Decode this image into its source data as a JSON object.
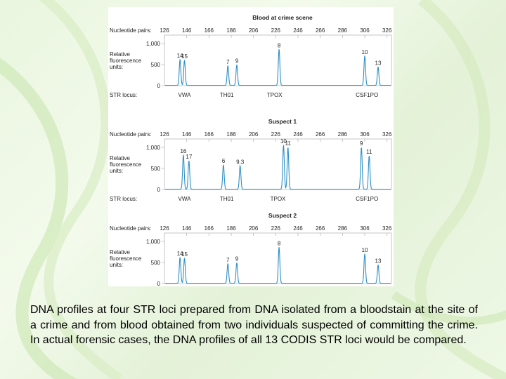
{
  "caption": "DNA profiles at four STR loci prepared from DNA isolated from a bloodstain at the site of a crime and from blood obtained from two individuals suspected of committing the crime. In actual forensic cases, the DNA profiles of all 13 CODIS STR loci would be compared.",
  "colors": {
    "trace": "#2f8fc4",
    "frame": "#b9b9b9",
    "text": "#222222"
  },
  "chart_data": [
    {
      "type": "line",
      "title": "Blood at crime scene",
      "x_axis_label": "Nucleotide pairs:",
      "x_ticks": [
        126,
        146,
        166,
        186,
        206,
        226,
        246,
        266,
        286,
        306,
        326
      ],
      "y_axis_label": [
        "Relative",
        "fluorescence",
        "units:"
      ],
      "y_ticks": [
        "1,000",
        "500",
        "0"
      ],
      "y_tick_values": [
        1000,
        500,
        0
      ],
      "ylim": [
        0,
        1100
      ],
      "xlim": [
        126,
        330
      ],
      "locus_label": "STR locus:",
      "loci": [
        {
          "name": "VWA",
          "x": 144
        },
        {
          "name": "TH01",
          "x": 182
        },
        {
          "name": "TPOX",
          "x": 225
        },
        {
          "name": "CSF1PO",
          "x": 308
        }
      ],
      "peaks": [
        {
          "label": "14",
          "x": 140,
          "y": 620
        },
        {
          "label": "15",
          "x": 144,
          "y": 600
        },
        {
          "label": "7",
          "x": 183,
          "y": 470
        },
        {
          "label": "9",
          "x": 191,
          "y": 490
        },
        {
          "label": "8",
          "x": 229,
          "y": 860
        },
        {
          "label": "10",
          "x": 306,
          "y": 700
        },
        {
          "label": "13",
          "x": 318,
          "y": 440
        }
      ]
    },
    {
      "type": "line",
      "title": "Suspect 1",
      "x_axis_label": "Nucleotide pairs:",
      "x_ticks": [
        126,
        146,
        166,
        186,
        206,
        226,
        246,
        266,
        286,
        306,
        326
      ],
      "y_axis_label": [
        "Relative",
        "fluorescence",
        "units:"
      ],
      "y_ticks": [
        "1,000",
        "500",
        "0"
      ],
      "y_tick_values": [
        1000,
        500,
        0
      ],
      "ylim": [
        0,
        1100
      ],
      "xlim": [
        126,
        330
      ],
      "locus_label": "STR locus:",
      "loci": [
        {
          "name": "VWA",
          "x": 144
        },
        {
          "name": "TH01",
          "x": 182
        },
        {
          "name": "TPOX",
          "x": 228
        },
        {
          "name": "CSF1PO",
          "x": 308
        }
      ],
      "peaks": [
        {
          "label": "16",
          "x": 143,
          "y": 820
        },
        {
          "label": "17",
          "x": 148,
          "y": 680
        },
        {
          "label": "6",
          "x": 179,
          "y": 580
        },
        {
          "label": "9.3",
          "x": 194,
          "y": 560
        },
        {
          "label": "10",
          "x": 233,
          "y": 1050
        },
        {
          "label": "11",
          "x": 237,
          "y": 1000
        },
        {
          "label": "9",
          "x": 303,
          "y": 1000
        },
        {
          "label": "11",
          "x": 310,
          "y": 800
        }
      ]
    },
    {
      "type": "line",
      "title": "Suspect 2",
      "x_axis_label": "Nucleotide pairs:",
      "x_ticks": [
        126,
        146,
        166,
        186,
        206,
        226,
        246,
        266,
        286,
        306,
        326
      ],
      "y_axis_label": [
        "Relative",
        "fluorescence",
        "units:"
      ],
      "y_ticks": [
        "1,000",
        "500",
        "0"
      ],
      "y_tick_values": [
        1000,
        500,
        0
      ],
      "ylim": [
        0,
        1100
      ],
      "xlim": [
        126,
        330
      ],
      "locus_label": "STR locus:",
      "loci": [
        {
          "name": "VWA",
          "x": 144
        },
        {
          "name": "TH01",
          "x": 182
        },
        {
          "name": "TPOX",
          "x": 225
        },
        {
          "name": "CSF1PO",
          "x": 308
        }
      ],
      "peaks": [
        {
          "label": "14",
          "x": 140,
          "y": 620
        },
        {
          "label": "15",
          "x": 144,
          "y": 600
        },
        {
          "label": "7",
          "x": 183,
          "y": 470
        },
        {
          "label": "9",
          "x": 191,
          "y": 490
        },
        {
          "label": "8",
          "x": 229,
          "y": 860
        },
        {
          "label": "10",
          "x": 306,
          "y": 700
        },
        {
          "label": "13",
          "x": 318,
          "y": 440
        }
      ]
    }
  ]
}
